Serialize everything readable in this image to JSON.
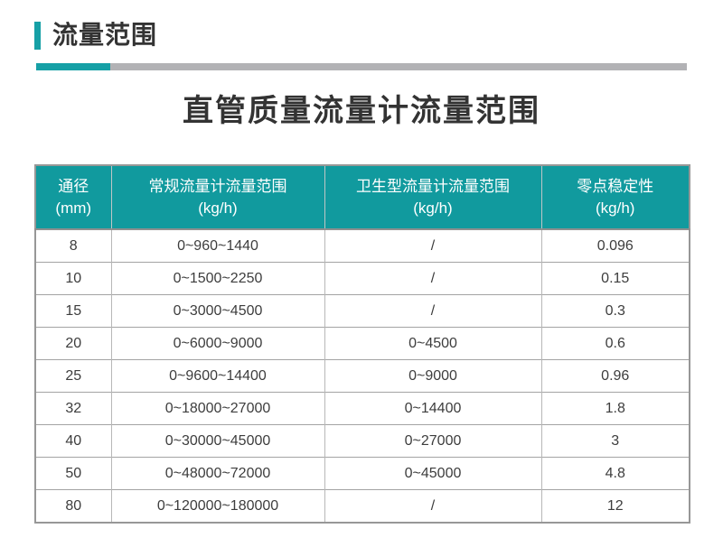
{
  "page": {
    "section_title": "流量范围",
    "main_title": "直管质量流量计流量范围"
  },
  "colors": {
    "accent_teal": "#16a0a6",
    "header_teal": "#119a9e",
    "rule_gray": "#b2b2b5",
    "text_dark": "#333333"
  },
  "table": {
    "columns": [
      {
        "line1": "通径",
        "line2": "(mm)"
      },
      {
        "line1": "常规流量计流量范围",
        "line2": "(kg/h)"
      },
      {
        "line1": "卫生型流量计流量范围",
        "line2": "(kg/h)"
      },
      {
        "line1": "零点稳定性",
        "line2": "(kg/h)"
      }
    ],
    "rows": [
      [
        "8",
        "0~960~1440",
        "/",
        "0.096"
      ],
      [
        "10",
        "0~1500~2250",
        "/",
        "0.15"
      ],
      [
        "15",
        "0~3000~4500",
        "/",
        "0.3"
      ],
      [
        "20",
        "0~6000~9000",
        "0~4500",
        "0.6"
      ],
      [
        "25",
        "0~9600~14400",
        "0~9000",
        "0.96"
      ],
      [
        "32",
        "0~18000~27000",
        "0~14400",
        "1.8"
      ],
      [
        "40",
        "0~30000~45000",
        "0~27000",
        "3"
      ],
      [
        "50",
        "0~48000~72000",
        "0~45000",
        "4.8"
      ],
      [
        "80",
        "0~120000~180000",
        "/",
        "12"
      ]
    ]
  }
}
